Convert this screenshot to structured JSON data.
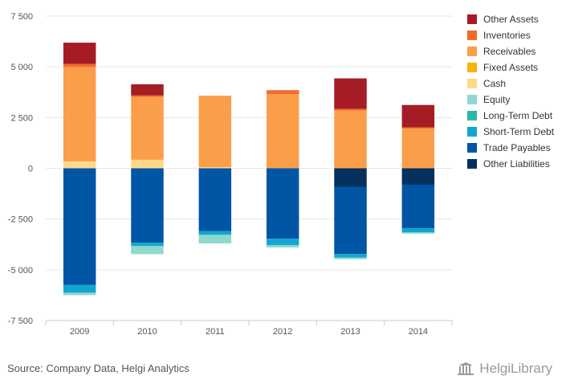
{
  "chart_data": {
    "type": "bar",
    "stacked": true,
    "categories": [
      "2009",
      "2010",
      "2011",
      "2012",
      "2013",
      "2014"
    ],
    "ylim": [
      -7500,
      7500
    ],
    "yticks": [
      -7500,
      -5000,
      -2500,
      0,
      2500,
      5000,
      7500
    ],
    "ytick_labels": [
      "-7 500",
      "-5 000",
      "-2 500",
      "0",
      "2 500",
      "5 000",
      "7 500"
    ],
    "grid": true,
    "legend_position": "right",
    "series": [
      {
        "name": "Other Assets",
        "color": "#a51c24",
        "values": [
          1050,
          550,
          0,
          0,
          1500,
          1100
        ]
      },
      {
        "name": "Inventories",
        "color": "#f26c2b",
        "values": [
          150,
          70,
          0,
          200,
          80,
          70
        ]
      },
      {
        "name": "Receivables",
        "color": "#fb9e4a",
        "values": [
          4650,
          3100,
          3520,
          3650,
          2850,
          1950
        ]
      },
      {
        "name": "Fixed Assets",
        "color": "#f7b500",
        "values": [
          0,
          0,
          0,
          0,
          0,
          0
        ]
      },
      {
        "name": "Cash",
        "color": "#fdd98a",
        "values": [
          340,
          420,
          60,
          0,
          0,
          0
        ]
      },
      {
        "name": "Equity",
        "color": "#8fd8d0",
        "values": [
          -120,
          -400,
          -420,
          -110,
          -80,
          -60
        ]
      },
      {
        "name": "Long-Term Debt",
        "color": "#2ab7a9",
        "values": [
          0,
          0,
          0,
          0,
          0,
          0
        ]
      },
      {
        "name": "Short-Term Debt",
        "color": "#11a6cf",
        "values": [
          -380,
          -160,
          -180,
          -320,
          -180,
          -200
        ]
      },
      {
        "name": "Trade Payables",
        "color": "#0055a5",
        "values": [
          -5750,
          -3670,
          -3100,
          -3470,
          -3310,
          -2150
        ]
      },
      {
        "name": "Other Liabilities",
        "color": "#05315f",
        "values": [
          0,
          0,
          0,
          0,
          -910,
          -810
        ]
      }
    ]
  },
  "footer": {
    "source": "Source: Company Data, Helgi Analytics",
    "brand": "HelgiLibrary"
  }
}
